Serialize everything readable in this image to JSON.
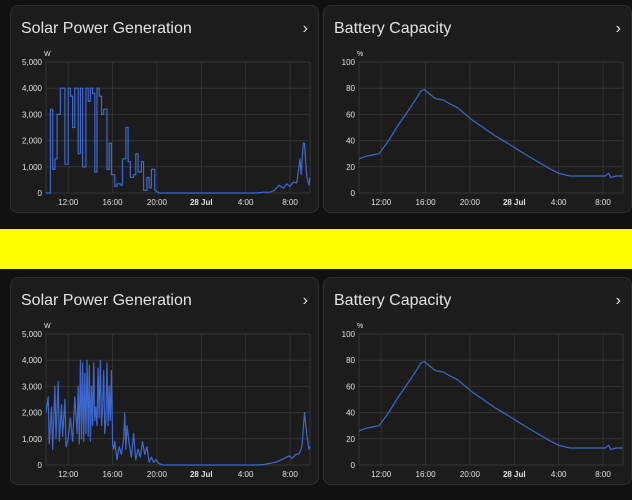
{
  "colors": {
    "background": "#111111",
    "card": "#1c1c1c",
    "separator": "#ffff00",
    "line": "#3e68cf",
    "text": "#e3e3e3",
    "grid": "#333333"
  },
  "icons": {
    "card_chevron": "chevron-right-icon"
  },
  "cards": {
    "top_solar": {
      "title": "Solar Power Generation",
      "chevron": "›"
    },
    "top_battery": {
      "title": "Battery Capacity",
      "chevron": "›"
    },
    "bottom_solar": {
      "title": "Solar Power Generation",
      "chevron": "›"
    },
    "bottom_battery": {
      "title": "Battery Capacity",
      "chevron": "›"
    }
  },
  "chart_data": [
    {
      "id": "top_solar",
      "type": "line",
      "title": "Solar Power Generation",
      "unit": "W",
      "ylim": [
        0,
        5000
      ],
      "yticks": [
        "0",
        "1,000",
        "2,000",
        "3,000",
        "4,000",
        "5,000"
      ],
      "xlim": [
        10,
        33.8
      ],
      "xticks": [
        {
          "v": 12,
          "label": "12:00"
        },
        {
          "v": 16,
          "label": "16:00"
        },
        {
          "v": 20,
          "label": "20:00"
        },
        {
          "v": 24,
          "label": "28 Jul",
          "bold": true
        },
        {
          "v": 28,
          "label": "4:00"
        },
        {
          "v": 32,
          "label": "8:00"
        }
      ],
      "x": [
        10.0,
        10.4,
        10.4,
        10.6,
        10.6,
        10.8,
        10.8,
        11.0,
        11.0,
        11.3,
        11.3,
        11.5,
        11.5,
        11.7,
        11.7,
        12.0,
        12.0,
        12.2,
        12.2,
        12.4,
        12.4,
        12.6,
        12.6,
        12.9,
        12.9,
        13.1,
        13.1,
        13.3,
        13.3,
        13.6,
        13.6,
        13.8,
        13.8,
        14.0,
        14.0,
        14.2,
        14.2,
        14.4,
        14.4,
        14.6,
        14.6,
        14.8,
        14.8,
        15.0,
        15.0,
        15.2,
        15.2,
        15.5,
        15.5,
        15.7,
        15.7,
        15.9,
        15.9,
        16.2,
        16.2,
        16.4,
        16.4,
        16.7,
        16.7,
        16.9,
        16.9,
        17.2,
        17.2,
        17.4,
        17.4,
        17.6,
        17.6,
        17.9,
        17.9,
        18.1,
        18.1,
        18.3,
        18.3,
        18.6,
        18.6,
        18.8,
        18.8,
        19.1,
        19.1,
        19.3,
        19.3,
        19.5,
        19.5,
        19.8,
        19.8,
        20.2,
        20.6,
        21.0,
        22.0,
        23.0,
        24.0,
        25.0,
        26.0,
        27.0,
        28.0,
        29.0,
        29.6,
        30.2,
        30.6,
        31.0,
        31.4,
        31.7,
        32.0,
        32.3,
        32.6,
        32.9,
        33.0,
        33.2,
        33.3,
        33.5,
        33.7,
        33.8
      ],
      "y": [
        0,
        0,
        3200,
        3200,
        900,
        900,
        1300,
        1300,
        3000,
        3000,
        4000,
        4000,
        4000,
        4000,
        1100,
        1100,
        4000,
        4000,
        3700,
        3700,
        2500,
        2500,
        4000,
        4000,
        1500,
        1500,
        4000,
        4000,
        1000,
        1000,
        4000,
        4000,
        3500,
        3500,
        4000,
        4000,
        3800,
        3800,
        800,
        800,
        4000,
        4000,
        3700,
        3700,
        3000,
        3000,
        3200,
        3200,
        900,
        900,
        1900,
        1900,
        700,
        700,
        250,
        250,
        350,
        350,
        300,
        300,
        1300,
        1300,
        2500,
        2500,
        1200,
        1200,
        600,
        600,
        700,
        700,
        1500,
        1500,
        800,
        800,
        1200,
        1200,
        100,
        100,
        600,
        600,
        200,
        200,
        900,
        900,
        120,
        0,
        0,
        0,
        0,
        0,
        0,
        0,
        0,
        0,
        0,
        0,
        30,
        30,
        100,
        300,
        180,
        350,
        250,
        420,
        380,
        1300,
        700,
        1900,
        1900,
        650,
        300,
        600
      ]
    },
    {
      "id": "top_battery",
      "type": "line",
      "title": "Battery Capacity",
      "unit": "%",
      "ylim": [
        0,
        100
      ],
      "yticks": [
        "0",
        "20",
        "40",
        "60",
        "80",
        "100"
      ],
      "xlim": [
        10,
        33.8
      ],
      "xticks": [
        {
          "v": 12,
          "label": "12:00"
        },
        {
          "v": 16,
          "label": "16:00"
        },
        {
          "v": 20,
          "label": "20:00"
        },
        {
          "v": 24,
          "label": "28 Jul",
          "bold": true
        },
        {
          "v": 28,
          "label": "4:00"
        },
        {
          "v": 32,
          "label": "8:00"
        }
      ],
      "x": [
        10,
        10.6,
        11.2,
        11.8,
        12.6,
        13.4,
        14.2,
        15.0,
        15.6,
        15.9,
        16.3,
        16.9,
        17.6,
        18.2,
        18.9,
        19.6,
        20.3,
        21.2,
        22.2,
        23.4,
        24.7,
        26.1,
        27.1,
        28.0,
        29.0,
        30.0,
        31.2,
        32.2,
        32.5,
        32.7,
        33.2,
        33.8
      ],
      "y": [
        26,
        28,
        29,
        30,
        39,
        50,
        60,
        70,
        78,
        79,
        76,
        72,
        71,
        68,
        65,
        60,
        55,
        50,
        44,
        38,
        31,
        24,
        19,
        15,
        13,
        13,
        13,
        13,
        15,
        12,
        13,
        13
      ]
    },
    {
      "id": "bottom_solar",
      "type": "line",
      "title": "Solar Power Generation",
      "unit": "W",
      "ylim": [
        0,
        5000
      ],
      "yticks": [
        "0",
        "1,000",
        "2,000",
        "3,000",
        "4,000",
        "5,000"
      ],
      "xlim": [
        10,
        33.8
      ],
      "xticks": [
        {
          "v": 12,
          "label": "12:00"
        },
        {
          "v": 16,
          "label": "16:00"
        },
        {
          "v": 20,
          "label": "20:00"
        },
        {
          "v": 24,
          "label": "28 Jul",
          "bold": true
        },
        {
          "v": 28,
          "label": "4:00"
        },
        {
          "v": 32,
          "label": "8:00"
        }
      ],
      "x": [
        10.0,
        10.2,
        10.3,
        10.5,
        10.6,
        10.8,
        10.9,
        11.1,
        11.2,
        11.4,
        11.5,
        11.7,
        11.8,
        12.0,
        12.2,
        12.4,
        12.6,
        12.8,
        12.9,
        13.0,
        13.1,
        13.2,
        13.3,
        13.4,
        13.5,
        13.6,
        13.7,
        13.8,
        13.9,
        14.0,
        14.1,
        14.2,
        14.3,
        14.4,
        14.5,
        14.6,
        14.7,
        14.8,
        14.9,
        15.0,
        15.1,
        15.2,
        15.3,
        15.4,
        15.5,
        15.6,
        15.7,
        15.8,
        15.9,
        16.0,
        16.1,
        16.2,
        16.4,
        16.6,
        16.8,
        17.0,
        17.1,
        17.2,
        17.3,
        17.5,
        17.7,
        17.9,
        18.1,
        18.3,
        18.5,
        18.7,
        18.9,
        19.1,
        19.3,
        19.5,
        19.7,
        19.9,
        20.2,
        20.6,
        21.0,
        22.0,
        23.0,
        24.0,
        25.0,
        26.0,
        27.0,
        28.0,
        29.0,
        29.6,
        30.2,
        30.8,
        31.2,
        31.6,
        31.9,
        32.2,
        32.5,
        32.8,
        33.0,
        33.1,
        33.2,
        33.3,
        33.5,
        33.7,
        33.8
      ],
      "y": [
        2000,
        2600,
        800,
        2200,
        600,
        3000,
        1000,
        3200,
        900,
        2300,
        1100,
        2500,
        700,
        1000,
        1800,
        900,
        2600,
        1200,
        3000,
        800,
        4000,
        1000,
        3900,
        900,
        3500,
        1200,
        4000,
        1100,
        3800,
        900,
        3000,
        1500,
        3900,
        1700,
        2200,
        1500,
        3700,
        1800,
        4000,
        1500,
        2200,
        3600,
        1200,
        1700,
        3900,
        1500,
        3000,
        1700,
        3600,
        800,
        600,
        900,
        200,
        700,
        400,
        1000,
        2000,
        600,
        1500,
        800,
        300,
        1200,
        200,
        600,
        300,
        900,
        400,
        700,
        100,
        300,
        100,
        200,
        50,
        0,
        0,
        0,
        0,
        0,
        0,
        0,
        0,
        0,
        0,
        20,
        60,
        120,
        200,
        280,
        350,
        250,
        400,
        420,
        600,
        800,
        1400,
        2000,
        1200,
        600,
        700
      ]
    },
    {
      "id": "bottom_battery",
      "type": "line",
      "title": "Battery Capacity",
      "unit": "%",
      "ylim": [
        0,
        100
      ],
      "yticks": [
        "0",
        "20",
        "40",
        "60",
        "80",
        "100"
      ],
      "xlim": [
        10,
        33.8
      ],
      "xticks": [
        {
          "v": 12,
          "label": "12:00"
        },
        {
          "v": 16,
          "label": "16:00"
        },
        {
          "v": 20,
          "label": "20:00"
        },
        {
          "v": 24,
          "label": "28 Jul",
          "bold": true
        },
        {
          "v": 28,
          "label": "4:00"
        },
        {
          "v": 32,
          "label": "8:00"
        }
      ],
      "x": [
        10,
        10.6,
        11.2,
        11.8,
        12.6,
        13.4,
        14.2,
        15.0,
        15.6,
        15.9,
        16.3,
        16.9,
        17.6,
        18.2,
        18.9,
        19.6,
        20.3,
        21.2,
        22.2,
        23.4,
        24.7,
        26.1,
        27.1,
        28.0,
        29.0,
        30.0,
        31.2,
        32.2,
        32.5,
        32.7,
        33.2,
        33.8
      ],
      "y": [
        26,
        28,
        29,
        30,
        39,
        50,
        60,
        70,
        78,
        79,
        76,
        72,
        71,
        68,
        65,
        60,
        55,
        50,
        44,
        38,
        31,
        24,
        19,
        15,
        13,
        13,
        13,
        13,
        15,
        12,
        13,
        13
      ]
    }
  ]
}
